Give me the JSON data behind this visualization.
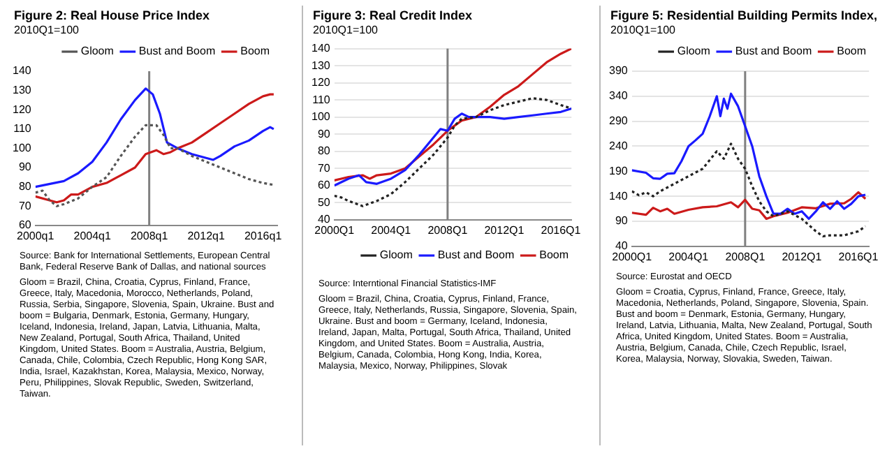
{
  "chart_data": [
    {
      "type": "line",
      "title": "Figure 2: Real House Price Index",
      "subtitle": "2010Q1=100",
      "xlim": [
        "2000-01",
        "2017-01"
      ],
      "xticks": [
        {
          "value": "2000-01",
          "label": "2000q1"
        },
        {
          "value": "2004-01",
          "label": "2004q1"
        },
        {
          "value": "2008-01",
          "label": "2008q1"
        },
        {
          "value": "2012-01",
          "label": "2012q1"
        },
        {
          "value": "2016-01",
          "label": "2016q1"
        }
      ],
      "ylim": [
        60,
        140
      ],
      "yticks": [
        60,
        70,
        80,
        90,
        100,
        110,
        120,
        130,
        140
      ],
      "legend": "top right",
      "series": [
        {
          "name": "Gloom",
          "color": "#555555",
          "line_style": "dotted",
          "x": [
            "2000-01",
            "2000-07",
            "2001-01",
            "2001-07",
            "2002-01",
            "2003-01",
            "2004-01",
            "2005-01",
            "2006-01",
            "2007-01",
            "2007-10",
            "2008-07",
            "2009-01",
            "2009-07",
            "2010-01",
            "2011-01",
            "2012-01",
            "2013-01",
            "2014-01",
            "2015-01",
            "2016-01",
            "2016-10"
          ],
          "values": [
            77,
            78,
            73,
            70,
            71,
            74,
            80,
            85,
            96,
            106,
            112,
            112,
            107,
            100,
            100,
            96,
            93,
            90,
            87,
            84,
            82,
            81
          ]
        },
        {
          "name": "Bust and Boom",
          "color": "#1a1aff",
          "line_style": "solid",
          "x": [
            "2000-01",
            "2002-01",
            "2003-01",
            "2004-01",
            "2005-01",
            "2006-01",
            "2007-01",
            "2007-10",
            "2008-04",
            "2008-10",
            "2009-04",
            "2010-01",
            "2011-01",
            "2012-01",
            "2012-07",
            "2013-01",
            "2014-01",
            "2015-01",
            "2016-01",
            "2016-07",
            "2016-10"
          ],
          "values": [
            80,
            83,
            87,
            93,
            103,
            115,
            125,
            131,
            128,
            118,
            103,
            100,
            97,
            95,
            94,
            96,
            101,
            104,
            109,
            111,
            110
          ]
        },
        {
          "name": "Boom",
          "color": "#cc1a1a",
          "line_style": "solid",
          "x": [
            "2000-01",
            "2001-01",
            "2001-07",
            "2002-01",
            "2002-07",
            "2003-01",
            "2004-01",
            "2005-01",
            "2006-01",
            "2007-01",
            "2007-10",
            "2008-07",
            "2009-01",
            "2009-07",
            "2010-01",
            "2011-01",
            "2012-01",
            "2013-01",
            "2014-01",
            "2015-01",
            "2016-01",
            "2016-07",
            "2016-10"
          ],
          "values": [
            75,
            73,
            72,
            73,
            76,
            76,
            80,
            82,
            86,
            90,
            97,
            99,
            97,
            98,
            100,
            103,
            108,
            113,
            118,
            123,
            127,
            128,
            128
          ]
        }
      ],
      "ref_lines": [
        {
          "axis": "x",
          "value": "2008-01",
          "color": "#808080"
        }
      ],
      "annotations": [
        "Source: Bank for International Settlements, European Central Bank, Federal Reserve Bank of Dallas, and national sources",
        "Gloom = Brazil, China, Croatia, Cyprus, Finland, France, Greece, Italy, Macedonia, Morocco, Netherlands, Poland, Russia, Serbia, Singapore, Slovenia, Spain, Ukraine. Bust and boom = Bulgaria, Denmark, Estonia, Germany, Hungary, Iceland, Indonesia, Ireland, Japan, Latvia, Lithuania, Malta, New Zealand, Portugal, South Africa, Thailand, United Kingdom, United States. Boom = Australia, Austria, Belgium, Canada, Chile, Colombia, Czech Republic, Hong Kong SAR, India, Israel, Kazakhstan, Korea, Malaysia, Mexico, Norway, Peru, Philippines, Slovak Republic, Sweden, Switzerland, Taiwan."
      ]
    },
    {
      "type": "line",
      "title": "Figure 3: Real Credit Index",
      "subtitle": "2010Q1=100",
      "xlim": [
        "2000-01",
        "2016-10"
      ],
      "xticks": [
        {
          "value": "2000-01",
          "label": "2000Q1"
        },
        {
          "value": "2004-01",
          "label": "2004Q1"
        },
        {
          "value": "2008-01",
          "label": "2008Q1"
        },
        {
          "value": "2012-01",
          "label": "2012Q1"
        },
        {
          "value": "2016-01",
          "label": "2016Q1"
        }
      ],
      "ylim": [
        40,
        140
      ],
      "yticks": [
        40,
        50,
        60,
        70,
        80,
        90,
        100,
        110,
        120,
        130,
        140
      ],
      "grid": "y",
      "legend": "bottom right",
      "series": [
        {
          "name": "Gloom",
          "color": "#222222",
          "line_style": "dotted",
          "x": [
            "2000-01",
            "2000-07",
            "2001-01",
            "2002-01",
            "2003-01",
            "2004-01",
            "2005-01",
            "2006-01",
            "2007-01",
            "2008-01",
            "2008-07",
            "2009-01",
            "2010-01",
            "2011-01",
            "2012-01",
            "2013-01",
            "2014-01",
            "2015-01",
            "2016-01",
            "2016-10"
          ],
          "values": [
            54,
            53,
            51,
            48,
            51,
            55,
            62,
            70,
            78,
            88,
            95,
            99,
            100,
            104,
            107,
            109,
            111,
            110,
            107,
            105
          ]
        },
        {
          "name": "Bust and Boom",
          "color": "#1a1aff",
          "line_style": "solid",
          "x": [
            "2000-01",
            "2001-01",
            "2001-10",
            "2002-04",
            "2003-01",
            "2004-01",
            "2005-01",
            "2006-01",
            "2007-01",
            "2007-07",
            "2008-01",
            "2008-07",
            "2009-01",
            "2009-07",
            "2010-01",
            "2011-01",
            "2012-01",
            "2013-01",
            "2014-01",
            "2015-01",
            "2016-01",
            "2016-10"
          ],
          "values": [
            60,
            64,
            66,
            62,
            61,
            64,
            69,
            78,
            88,
            93,
            92,
            99,
            102,
            100,
            100,
            100,
            99,
            100,
            101,
            102,
            103,
            105
          ]
        },
        {
          "name": "Boom",
          "color": "#cc1a1a",
          "line_style": "solid",
          "x": [
            "2000-01",
            "2001-01",
            "2002-01",
            "2002-07",
            "2003-01",
            "2004-01",
            "2005-01",
            "2006-01",
            "2007-01",
            "2008-01",
            "2009-01",
            "2010-01",
            "2011-01",
            "2012-01",
            "2013-01",
            "2014-01",
            "2015-01",
            "2016-01",
            "2016-10"
          ],
          "values": [
            63,
            65,
            66,
            64,
            66,
            67,
            70,
            77,
            84,
            92,
            98,
            100,
            106,
            113,
            118,
            125,
            132,
            137,
            140
          ]
        }
      ],
      "ref_lines": [
        {
          "axis": "x",
          "value": "2008-01",
          "color": "#808080"
        }
      ],
      "annotations": [
        "Source: Interntional Financial Statistics-IMF",
        "Gloom = Brazil, China, Croatia, Cyprus, Finland, France, Greece, Italy, Netherlands, Russia, Singapore, Slovenia, Spain, Ukraine. Bust and boom = Germany, Iceland, Indonesia, Ireland, Japan, Malta, Portugal, South Africa, Thailand, United Kingdom, and United States. Boom = Australia, Austria, Belgium, Canada, Colombia, Hong Kong, India, Korea, Malaysia, Mexico, Norway, Philippines, Slovak"
      ]
    },
    {
      "type": "line",
      "title": "Figure 5: Residential Building Permits Index,",
      "subtitle": "2010Q1=100",
      "xlim": [
        "2000-01",
        "2016-10"
      ],
      "xticks": [
        {
          "value": "2000-01",
          "label": "2000Q1"
        },
        {
          "value": "2004-01",
          "label": "2004Q1"
        },
        {
          "value": "2008-01",
          "label": "2008Q1"
        },
        {
          "value": "2012-01",
          "label": "2012Q1"
        },
        {
          "value": "2016-01",
          "label": "2016Q1"
        }
      ],
      "ylim": [
        40,
        390
      ],
      "yticks": [
        40,
        90,
        140,
        190,
        240,
        290,
        340,
        390
      ],
      "grid": "y",
      "legend": "top right",
      "series": [
        {
          "name": "Gloom",
          "color": "#222222",
          "line_style": "dotted",
          "x": [
            "2000-01",
            "2000-07",
            "2001-01",
            "2001-07",
            "2002-01",
            "2003-01",
            "2004-01",
            "2005-01",
            "2006-01",
            "2006-07",
            "2007-01",
            "2007-07",
            "2008-01",
            "2008-07",
            "2009-01",
            "2009-07",
            "2010-01",
            "2011-01",
            "2012-01",
            "2013-01",
            "2013-07",
            "2014-01",
            "2015-01",
            "2016-01",
            "2016-07"
          ],
          "values": [
            150,
            142,
            148,
            140,
            150,
            165,
            180,
            195,
            230,
            215,
            245,
            215,
            195,
            160,
            130,
            110,
            100,
            110,
            95,
            70,
            60,
            62,
            62,
            70,
            80
          ]
        },
        {
          "name": "Bust and Boom",
          "color": "#1a1aff",
          "line_style": "solid",
          "x": [
            "2000-01",
            "2001-01",
            "2001-07",
            "2002-01",
            "2002-07",
            "2003-01",
            "2003-07",
            "2004-01",
            "2004-07",
            "2005-01",
            "2005-07",
            "2006-01",
            "2006-04",
            "2006-07",
            "2006-10",
            "2007-01",
            "2007-07",
            "2008-01",
            "2008-07",
            "2009-01",
            "2009-07",
            "2010-01",
            "2010-07",
            "2011-01",
            "2011-07",
            "2012-01",
            "2012-07",
            "2013-01",
            "2013-07",
            "2014-01",
            "2014-07",
            "2015-01",
            "2015-07",
            "2016-01",
            "2016-07"
          ],
          "values": [
            192,
            187,
            176,
            175,
            185,
            186,
            210,
            240,
            252,
            265,
            300,
            340,
            300,
            335,
            315,
            345,
            320,
            280,
            240,
            180,
            140,
            105,
            105,
            115,
            105,
            110,
            95,
            110,
            128,
            115,
            130,
            115,
            125,
            140,
            143
          ]
        },
        {
          "name": "Boom",
          "color": "#cc1a1a",
          "line_style": "solid",
          "x": [
            "2000-01",
            "2001-01",
            "2001-07",
            "2002-01",
            "2002-07",
            "2003-01",
            "2004-01",
            "2005-01",
            "2006-01",
            "2007-01",
            "2007-07",
            "2008-01",
            "2008-07",
            "2009-01",
            "2009-07",
            "2010-01",
            "2011-01",
            "2012-01",
            "2013-01",
            "2014-01",
            "2015-01",
            "2015-07",
            "2016-01",
            "2016-07"
          ],
          "values": [
            107,
            103,
            117,
            110,
            115,
            105,
            113,
            118,
            120,
            128,
            118,
            133,
            115,
            112,
            95,
            100,
            107,
            118,
            116,
            125,
            126,
            135,
            148,
            135
          ]
        }
      ],
      "ref_lines": [
        {
          "axis": "x",
          "value": "2008-01",
          "color": "#808080"
        }
      ],
      "annotations": [
        "Source: Eurostat and OECD",
        "Gloom = Croatia, Cyprus, Finland, France, Greece, Italy, Macedonia, Netherlands, Poland, Singapore, Slovenia, Spain. Bust and boom = Denmark, Estonia, Germany, Hungary, Ireland, Latvia, Lithuania, Malta, New Zealand, Portugal, South Africa, United Kingdom, United States. Boom = Australia, Austria, Belgium, Canada, Chile, Czech Republic, Israel, Korea, Malaysia, Norway, Slovakia, Sweden, Taiwan."
      ]
    }
  ]
}
